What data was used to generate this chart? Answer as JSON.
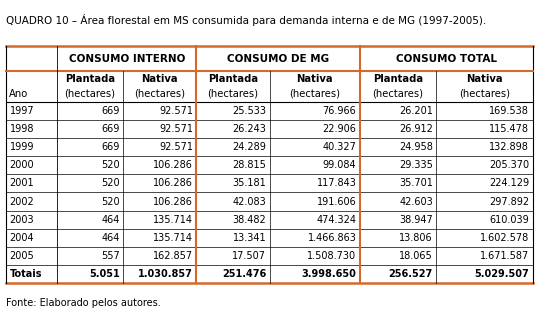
{
  "title": "QUADRO 10 – Área florestal em MS consumida para demanda interna e de MG (1997-2005).",
  "footer": "Fonte: Elaborado pelos autores.",
  "header_groups": [
    "CONSUMO INTERNO",
    "CONSUMO DE MG",
    "CONSUMO TOTAL"
  ],
  "subheader_line1": [
    "Plantada",
    "Nativa",
    "Plantada",
    "Nativa",
    "Plantada",
    "Nativa"
  ],
  "subheader_line2": [
    "(hectares)",
    "(hectares)",
    "(hectares)",
    "(hectares)",
    "(hectares)",
    "(hectares)"
  ],
  "col0_header": "Ano",
  "rows": [
    [
      "1997",
      "669",
      "92.571",
      "25.533",
      "76.966",
      "26.201",
      "169.538"
    ],
    [
      "1998",
      "669",
      "92.571",
      "26.243",
      "22.906",
      "26.912",
      "115.478"
    ],
    [
      "1999",
      "669",
      "92.571",
      "24.289",
      "40.327",
      "24.958",
      "132.898"
    ],
    [
      "2000",
      "520",
      "106.286",
      "28.815",
      "99.084",
      "29.335",
      "205.370"
    ],
    [
      "2001",
      "520",
      "106.286",
      "35.181",
      "117.843",
      "35.701",
      "224.129"
    ],
    [
      "2002",
      "520",
      "106.286",
      "42.083",
      "191.606",
      "42.603",
      "297.892"
    ],
    [
      "2003",
      "464",
      "135.714",
      "38.482",
      "474.324",
      "38.947",
      "610.039"
    ],
    [
      "2004",
      "464",
      "135.714",
      "13.341",
      "1.466.863",
      "13.806",
      "1.602.578"
    ],
    [
      "2005",
      "557",
      "162.857",
      "17.507",
      "1.508.730",
      "18.065",
      "1.671.587"
    ]
  ],
  "totals_row": [
    "Totais",
    "5.051",
    "1.030.857",
    "251.476",
    "3.998.650",
    "256.527",
    "5.029.507"
  ],
  "orange_color": "#D4692A",
  "text_color": "#000000",
  "title_fontsize": 7.5,
  "group_header_fontsize": 7.5,
  "subheader_fontsize": 7.2,
  "cell_fontsize": 7.0,
  "footer_fontsize": 7.0
}
